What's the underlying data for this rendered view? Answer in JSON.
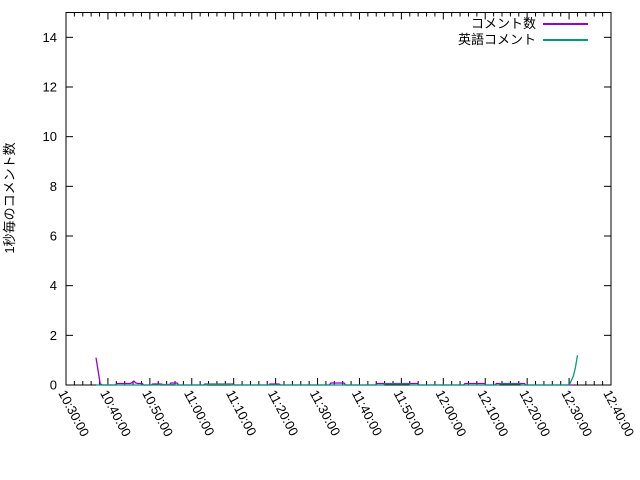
{
  "chart_data": {
    "type": "line",
    "title": "",
    "xlabel": "",
    "ylabel": "1秒毎のコメント数",
    "ylim": [
      0,
      15
    ],
    "y_ticks": [
      0,
      2,
      4,
      6,
      8,
      10,
      12,
      14
    ],
    "grid": false,
    "legend_position": "top-right-inside",
    "axis_color": "#000000",
    "background_color": "#ffffff",
    "x_axis": {
      "start": "10:30:00",
      "end": "12:40:00",
      "major_tick_seconds": 600,
      "minor_tick_seconds": 120,
      "label_rotation_deg": 62,
      "tick_labels": [
        "10:30:00",
        "10:40:00",
        "10:50:00",
        "11:00:00",
        "11:10:00",
        "11:20:00",
        "11:30:00",
        "11:40:00",
        "11:50:00",
        "12:00:00",
        "12:10:00",
        "12:20:00",
        "12:30:00",
        "12:40:00"
      ]
    },
    "series": [
      {
        "name": "コメント数",
        "color": "#9400d3",
        "points": [
          [
            "10:37:10",
            1.1
          ],
          [
            "10:38:10",
            0.05
          ],
          [
            "10:38:40",
            0
          ],
          [
            "10:41:50",
            0
          ],
          [
            "10:42:10",
            0.06
          ],
          [
            "10:45:20",
            0.06
          ],
          [
            "10:45:50",
            0.1
          ],
          [
            "10:46:10",
            0.16
          ],
          [
            "10:46:40",
            0.08
          ],
          [
            "10:47:10",
            0.06
          ],
          [
            "10:48:10",
            0.06
          ],
          [
            "10:48:30",
            0
          ],
          [
            "10:50:20",
            0
          ],
          [
            "10:50:40",
            0.04
          ],
          [
            "10:52:50",
            0.04
          ],
          [
            "10:53:10",
            0
          ],
          [
            "10:54:40",
            0
          ],
          [
            "10:55:00",
            0.08
          ],
          [
            "10:56:30",
            0.08
          ],
          [
            "10:56:50",
            0
          ],
          [
            "11:02:50",
            0
          ],
          [
            "11:03:10",
            0.04
          ],
          [
            "11:09:50",
            0.04
          ],
          [
            "11:10:10",
            0
          ],
          [
            "11:18:20",
            0
          ],
          [
            "11:18:40",
            0.04
          ],
          [
            "11:20:50",
            0.04
          ],
          [
            "11:21:10",
            0
          ],
          [
            "11:32:50",
            0
          ],
          [
            "11:33:10",
            0.08
          ],
          [
            "11:36:20",
            0.08
          ],
          [
            "11:36:40",
            0
          ],
          [
            "11:43:50",
            0
          ],
          [
            "11:44:10",
            0.06
          ],
          [
            "11:53:50",
            0.06
          ],
          [
            "11:54:10",
            0
          ],
          [
            "12:04:50",
            0
          ],
          [
            "12:05:10",
            0.06
          ],
          [
            "12:09:50",
            0.06
          ],
          [
            "12:10:10",
            0
          ],
          [
            "12:12:20",
            0
          ],
          [
            "12:12:40",
            0.06
          ],
          [
            "12:19:20",
            0.06
          ],
          [
            "12:19:40",
            0
          ],
          [
            "12:31:00",
            0
          ]
        ]
      },
      {
        "name": "英語コメント",
        "color": "#009e73",
        "points": [
          [
            "10:37:10",
            0
          ],
          [
            "10:52:10",
            0
          ],
          [
            "10:52:30",
            0.02
          ],
          [
            "10:55:50",
            0.02
          ],
          [
            "10:56:10",
            0
          ],
          [
            "11:03:20",
            0
          ],
          [
            "11:03:40",
            0.03
          ],
          [
            "11:09:20",
            0.03
          ],
          [
            "11:09:40",
            0
          ],
          [
            "11:45:40",
            0
          ],
          [
            "11:46:00",
            0.04
          ],
          [
            "11:51:50",
            0.04
          ],
          [
            "11:52:10",
            0
          ],
          [
            "12:13:10",
            0
          ],
          [
            "12:13:30",
            0.04
          ],
          [
            "12:18:20",
            0.04
          ],
          [
            "12:18:40",
            0
          ],
          [
            "12:29:40",
            0
          ],
          [
            "12:30:10",
            0.05
          ],
          [
            "12:31:00",
            0.35
          ],
          [
            "12:31:30",
            0.7
          ],
          [
            "12:32:00",
            1.2
          ]
        ]
      }
    ]
  }
}
